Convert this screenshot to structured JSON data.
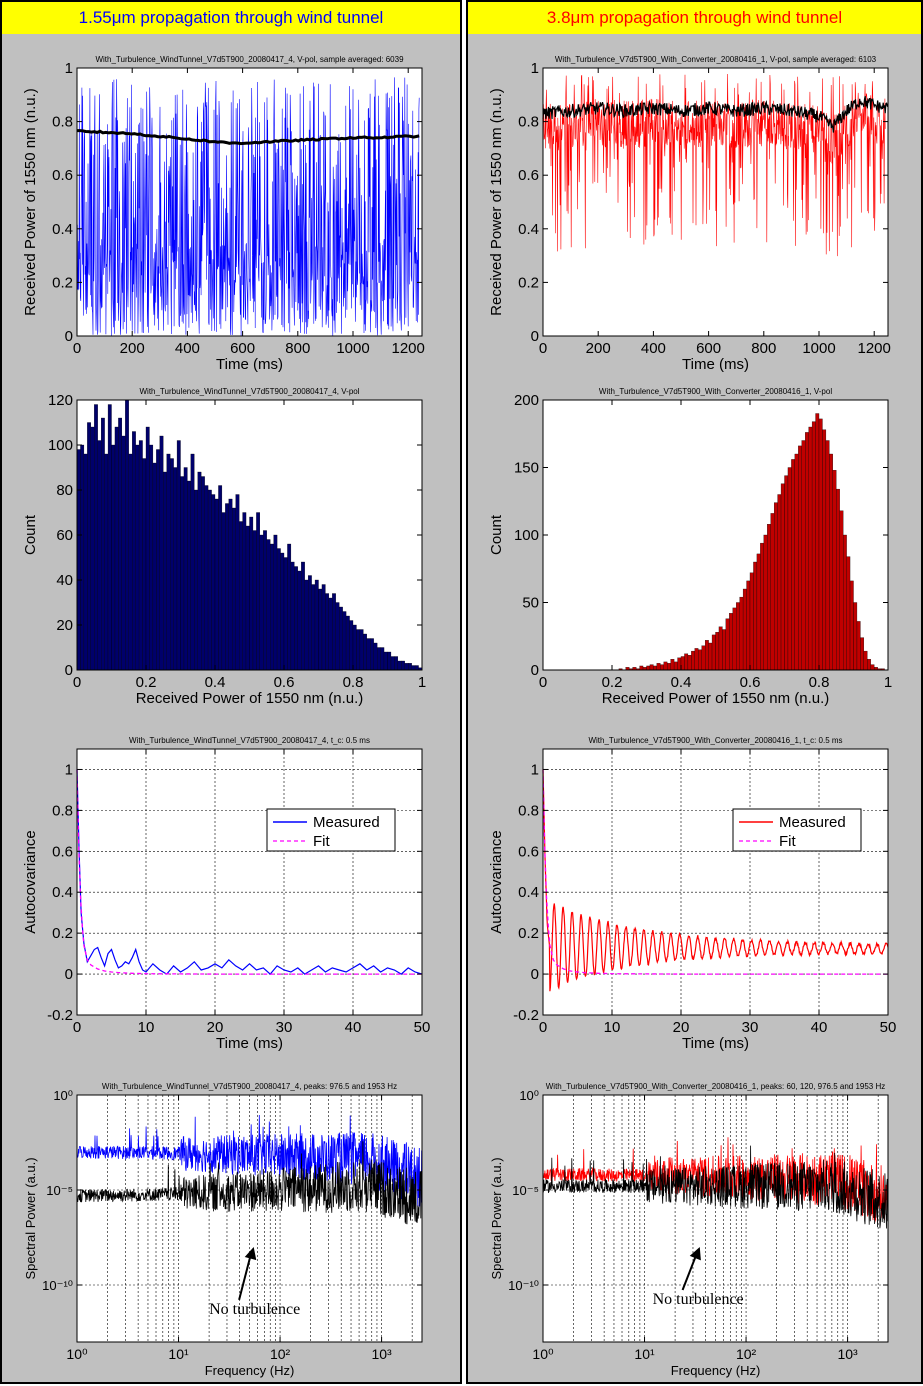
{
  "colors": {
    "blue": "#0000ff",
    "red": "#ff0000",
    "navy": "#00006b",
    "darkred": "#c00000",
    "magenta": "#ff00ff",
    "black": "#000000",
    "title_bg": "#ffff00",
    "panel_bg": "#c0c0c0"
  },
  "panels": [
    {
      "title": "1.55μm propagation through wind tunnel",
      "title_color": "#0000ff",
      "main_color": "#0000ff",
      "hist_color": "#00006b",
      "charts": {
        "time": {
          "type": "line",
          "subtitle": "With_Turbulence_WindTunnel_V7d5T900_20080417_4, V-pol, sample averaged: 6039",
          "xlabel": "Time (ms)",
          "ylabel": "Received Power of 1550 nm (n.u.)",
          "xlim": [
            0,
            1250
          ],
          "ylim": [
            0,
            1
          ],
          "xticks": [
            0,
            200,
            400,
            600,
            800,
            1000,
            1200
          ],
          "yticks": [
            0,
            0.2,
            0.4,
            0.6,
            0.8,
            1
          ],
          "grid": false,
          "series": [
            {
              "color": "#0000ff",
              "style": "noisy",
              "range": [
                0,
                0.97
              ]
            },
            {
              "color": "#000000",
              "style": "smooth",
              "x": [
                0,
                100,
                200,
                300,
                400,
                500,
                550,
                600,
                700,
                800,
                900,
                1000,
                1100,
                1200,
                1240
              ],
              "y": [
                0.765,
                0.76,
                0.755,
                0.745,
                0.735,
                0.725,
                0.72,
                0.72,
                0.725,
                0.73,
                0.735,
                0.74,
                0.74,
                0.745,
                0.745
              ]
            }
          ]
        },
        "hist": {
          "type": "bar",
          "subtitle": "With_Turbulence_WindTunnel_V7d5T900_20080417_4, V-pol",
          "xlabel": "Received Power of 1550 nm (n.u.)",
          "ylabel": "Count",
          "xlim": [
            0,
            1
          ],
          "ylim": [
            0,
            120
          ],
          "xticks": [
            0,
            0.2,
            0.4,
            0.6,
            0.8,
            1
          ],
          "yticks": [
            0,
            20,
            40,
            60,
            80,
            100,
            120
          ],
          "bins": 100,
          "values": [
            98,
            100,
            96,
            110,
            108,
            118,
            102,
            112,
            96,
            118,
            100,
            108,
            112,
            104,
            120,
            96,
            106,
            100,
            102,
            94,
            108,
            100,
            92,
            98,
            104,
            88,
            96,
            94,
            90,
            102,
            86,
            90,
            84,
            96,
            80,
            88,
            86,
            82,
            80,
            78,
            76,
            82,
            70,
            74,
            76,
            72,
            78,
            66,
            70,
            64,
            68,
            62,
            70,
            60,
            62,
            58,
            56,
            60,
            54,
            52,
            50,
            56,
            48,
            46,
            44,
            48,
            40,
            42,
            38,
            40,
            36,
            38,
            34,
            32,
            34,
            30,
            28,
            26,
            24,
            22,
            20,
            18,
            18,
            16,
            14,
            14,
            12,
            10,
            10,
            8,
            8,
            6,
            6,
            4,
            4,
            3,
            3,
            2,
            2,
            1
          ]
        },
        "acov": {
          "type": "line",
          "subtitle": "With_Turbulence_WindTunnel_V7d5T900_20080417_4, t_c: 0.5 ms",
          "xlabel": "Time (ms)",
          "ylabel": "Autocovariance",
          "xlim": [
            0,
            50
          ],
          "ylim": [
            -0.2,
            1.1
          ],
          "xticks": [
            0,
            10,
            20,
            30,
            40,
            50
          ],
          "yticks": [
            -0.2,
            0,
            0.2,
            0.4,
            0.6,
            0.8,
            1
          ],
          "grid": true,
          "legend": {
            "placement": "right",
            "measured": "Measured",
            "fit": "Fit"
          },
          "series": [
            {
              "name": "Measured",
              "color": "#0000ff",
              "x": [
                0,
                0.3,
                0.6,
                1,
                1.5,
                2,
                2.5,
                3,
                3.5,
                4,
                4.5,
                5,
                5.5,
                6,
                6.5,
                7,
                7.5,
                8,
                8.5,
                9,
                9.5,
                10,
                11,
                12,
                13,
                14,
                15,
                16,
                17,
                18,
                19,
                20,
                21,
                22,
                23,
                24,
                25,
                26,
                27,
                28,
                29,
                30,
                31,
                32,
                33,
                34,
                35,
                36,
                37,
                38,
                39,
                40,
                41,
                42,
                43,
                44,
                45,
                46,
                47,
                48,
                49,
                50
              ],
              "y": [
                1,
                0.6,
                0.3,
                0.15,
                0.06,
                0.09,
                0.12,
                0.13,
                0.08,
                0.04,
                0.1,
                0.12,
                0.07,
                0.03,
                0.04,
                0.06,
                0.05,
                0.08,
                0.12,
                0.06,
                0.02,
                0.01,
                0.05,
                0.02,
                0.0,
                0.04,
                0.01,
                0.03,
                0.06,
                0.02,
                0.03,
                0.05,
                0.03,
                0.07,
                0.04,
                0.02,
                0.05,
                0.02,
                0.03,
                0.0,
                0.04,
                0.02,
                0.01,
                0.03,
                0.0,
                0.02,
                0.04,
                0.01,
                0.03,
                0.02,
                0.01,
                0.03,
                0.05,
                0.02,
                0.04,
                0.01,
                0.03,
                0.02,
                0.0,
                0.03,
                0.01,
                0.0
              ]
            },
            {
              "name": "Fit",
              "color": "#ff00ff",
              "x": [
                0,
                0.25,
                0.5,
                0.75,
                1,
                1.5,
                2,
                3,
                4,
                5,
                6,
                8,
                10,
                15,
                20,
                30,
                40,
                50
              ],
              "y": [
                1,
                0.62,
                0.38,
                0.24,
                0.14,
                0.07,
                0.045,
                0.025,
                0.015,
                0.01,
                0.007,
                0.004,
                0.002,
                0.001,
                0,
                0,
                0,
                0
              ]
            }
          ]
        },
        "spec": {
          "type": "line",
          "subtitle": "With_Turbulence_WindTunnel_V7d5T900_20080417_4, peaks: 976.5 and 1953 Hz",
          "xlabel": "Frequency (Hz)",
          "ylabel": "Spectral Power (a.u.)",
          "xscale": "log",
          "yscale": "log",
          "xlim": [
            1,
            2500
          ],
          "ylim": [
            1e-13,
            1
          ],
          "xticks": [
            1,
            10,
            100,
            1000
          ],
          "xtick_labels": [
            "10⁰",
            "10¹",
            "10²",
            "10³"
          ],
          "yticks": [
            1e-10,
            1e-05,
            1
          ],
          "ytick_labels": [
            "10⁻¹⁰",
            "10⁻⁵",
            "10⁰"
          ],
          "grid": true,
          "series": [
            {
              "color": "#0000ff",
              "style": "spectrum",
              "base_exp": -3,
              "slope_exp": -3.5
            },
            {
              "color": "#000000",
              "style": "spectrum",
              "base_exp": -5.3,
              "slope_exp": -4.6
            }
          ],
          "annotation": {
            "text": "No turbulence",
            "x": 55,
            "y": 1e-08
          },
          "annotation_label_pos": [
            20,
            3e-12
          ]
        }
      }
    },
    {
      "title": "3.8μm propagation through wind tunnel",
      "title_color": "#ff0000",
      "main_color": "#ff0000",
      "hist_color": "#c00000",
      "charts": {
        "time": {
          "type": "line",
          "subtitle": "With_Turbulence_V7d5T900_With_Converter_20080416_1, V-pol, sample averaged: 6103",
          "xlabel": "Time (ms)",
          "ylabel": "Received Power of 1550 nm (n.u.)",
          "xlim": [
            0,
            1250
          ],
          "ylim": [
            0,
            1
          ],
          "xticks": [
            0,
            200,
            400,
            600,
            800,
            1000,
            1200
          ],
          "yticks": [
            0,
            0.2,
            0.4,
            0.6,
            0.8,
            1
          ],
          "grid": false,
          "series": [
            {
              "color": "#ff0000",
              "style": "noisy_upper",
              "range": [
                0.25,
                0.98
              ]
            },
            {
              "color": "#000000",
              "style": "smooth_noisy",
              "x": [
                0,
                100,
                200,
                300,
                400,
                500,
                600,
                700,
                800,
                900,
                1000,
                1050,
                1100,
                1150,
                1200,
                1250
              ],
              "y": [
                0.83,
                0.84,
                0.85,
                0.84,
                0.85,
                0.84,
                0.85,
                0.84,
                0.85,
                0.84,
                0.82,
                0.78,
                0.84,
                0.88,
                0.86,
                0.85
              ]
            }
          ]
        },
        "hist": {
          "type": "bar",
          "subtitle": "With_Turbulence_V7d5T900_With_Converter_20080416_1, V-pol",
          "xlabel": "Received Power of 1550 nm (n.u.)",
          "ylabel": "Count",
          "xlim": [
            0,
            1
          ],
          "ylim": [
            0,
            200
          ],
          "xticks": [
            0,
            0.2,
            0.4,
            0.6,
            0.8,
            1
          ],
          "yticks": [
            0,
            50,
            100,
            150,
            200
          ],
          "bins": 100,
          "values": [
            0,
            0,
            0,
            0,
            0,
            0,
            0,
            0,
            0,
            0,
            0,
            0,
            0,
            0,
            0,
            0,
            0,
            0,
            0,
            0,
            0,
            0,
            1,
            0,
            2,
            1,
            2,
            1,
            3,
            2,
            3,
            4,
            3,
            5,
            4,
            6,
            5,
            8,
            6,
            9,
            10,
            12,
            11,
            14,
            16,
            15,
            18,
            22,
            20,
            26,
            28,
            32,
            30,
            38,
            42,
            46,
            50,
            54,
            60,
            66,
            72,
            80,
            86,
            94,
            100,
            108,
            116,
            124,
            130,
            138,
            144,
            150,
            156,
            160,
            166,
            170,
            176,
            180,
            184,
            190,
            186,
            178,
            170,
            160,
            148,
            134,
            118,
            100,
            84,
            66,
            50,
            36,
            24,
            14,
            8,
            4,
            2,
            1,
            1,
            0
          ]
        },
        "acov": {
          "type": "line",
          "subtitle": "With_Turbulence_V7d5T900_With_Converter_20080416_1, t_c: 0.5 ms",
          "xlabel": "Time (ms)",
          "ylabel": "Autocovariance",
          "xlim": [
            0,
            50
          ],
          "ylim": [
            -0.2,
            1.1
          ],
          "xticks": [
            0,
            10,
            20,
            30,
            40,
            50
          ],
          "yticks": [
            -0.2,
            0,
            0.2,
            0.4,
            0.6,
            0.8,
            1
          ],
          "grid": true,
          "legend": {
            "placement": "right",
            "measured": "Measured",
            "fit": "Fit"
          },
          "series": [
            {
              "name": "Measured",
              "color": "#ff0000",
              "style": "oscillating",
              "x": [
                0,
                0.3,
                0.6,
                1,
                50
              ],
              "y": [
                1,
                0.55,
                0.25,
                0.12,
                0.12
              ]
            },
            {
              "name": "Fit",
              "color": "#ff00ff",
              "x": [
                0,
                0.25,
                0.5,
                0.75,
                1,
                1.5,
                2,
                3,
                4,
                5,
                6,
                8,
                10,
                15,
                20,
                30,
                40,
                50
              ],
              "y": [
                1,
                0.62,
                0.38,
                0.24,
                0.14,
                0.07,
                0.045,
                0.025,
                0.015,
                0.01,
                0.007,
                0.004,
                0.002,
                0.001,
                0,
                0,
                0,
                0
              ]
            }
          ]
        },
        "spec": {
          "type": "line",
          "subtitle": "With_Turbulence_V7d5T900_With_Converter_20080416_1, peaks: 60, 120, 976.5 and 1953 Hz",
          "xlabel": "Frequency (Hz)",
          "ylabel": "Spectral Power (a.u.)",
          "xscale": "log",
          "yscale": "log",
          "xlim": [
            1,
            2500
          ],
          "ylim": [
            1e-13,
            1
          ],
          "xticks": [
            1,
            10,
            100,
            1000
          ],
          "xtick_labels": [
            "10⁰",
            "10¹",
            "10²",
            "10³"
          ],
          "yticks": [
            1e-10,
            1e-05,
            1
          ],
          "ytick_labels": [
            "10⁻¹⁰",
            "10⁻⁵",
            "10⁰"
          ],
          "grid": true,
          "series": [
            {
              "color": "#ff0000",
              "style": "spectrum",
              "base_exp": -4.2,
              "slope_exp": -4.5
            },
            {
              "color": "#000000",
              "style": "spectrum",
              "base_exp": -4.8,
              "slope_exp": -4.8
            }
          ],
          "annotation": {
            "text": "No turbulence",
            "x": 35,
            "y": 1e-08
          },
          "annotation_label_pos": [
            12,
            1e-11
          ]
        }
      }
    }
  ]
}
